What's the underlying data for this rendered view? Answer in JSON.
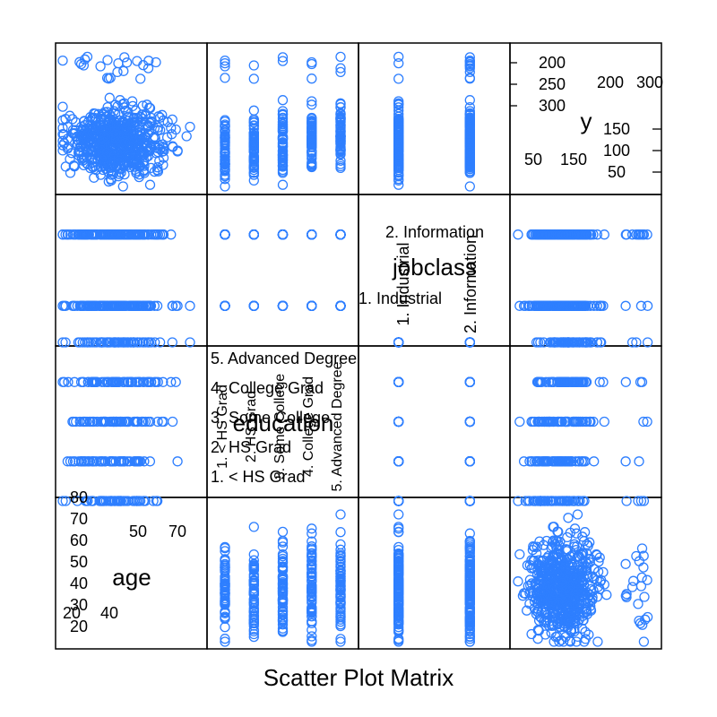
{
  "chart_data": {
    "type": "scatter",
    "title": "Scatter Plot Matrix",
    "variables": [
      {
        "name": "age",
        "kind": "numeric",
        "range": [
          18,
          80
        ],
        "tick_labels_lower": [
          "20",
          "30",
          "40",
          "50",
          "60",
          "70",
          "80"
        ],
        "tick_labels_upper": [
          "20",
          "40"
        ],
        "tick_labels_upper_extra": [
          "50",
          "70"
        ]
      },
      {
        "name": "education",
        "kind": "factor",
        "levels": [
          "1. < HS Grad",
          "2. HS Grad",
          "3. Some College",
          "4. College Grad",
          "5. Advanced Degree"
        ]
      },
      {
        "name": "jobclass",
        "kind": "factor",
        "levels": [
          "1. Industrial",
          "2. Information"
        ]
      },
      {
        "name": "y",
        "kind": "numeric",
        "range": [
          20,
          320
        ],
        "tick_labels_lower": [
          "50",
          "100",
          "150"
        ],
        "tick_labels_upper": [
          "200",
          "250",
          "300"
        ],
        "tick_labels_lower_extra": [
          "50",
          "150"
        ],
        "tick_labels_upper_extra": [
          "200",
          "300"
        ]
      }
    ],
    "data_summary": {
      "age_typical": [
        25,
        60
      ],
      "y_typical": [
        50,
        150
      ],
      "y_high_cluster": [
        250,
        320
      ]
    },
    "series_color": "#2E7FFF",
    "grid": false,
    "legend": "none"
  }
}
